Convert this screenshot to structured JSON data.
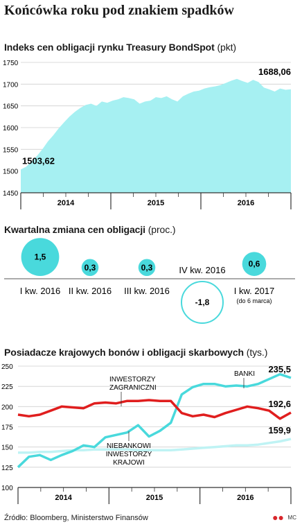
{
  "title": "Końcówka roku pod znakiem spadków",
  "source": "Źródło: Bloomberg, Ministerstwo Finansów",
  "brand": "MC",
  "colors": {
    "cyan": "#a6f0f2",
    "cyanLine": "#49d9dc",
    "red": "#e01e1e",
    "paleCyan": "#bff3f4",
    "grid": "#cfcfcf"
  },
  "chart_data": [
    {
      "type": "area",
      "title": "Indeks cen obligacji rynku Treasury BondSpot",
      "unit": "(pkt)",
      "ylim": [
        1450,
        1750
      ],
      "yticks": [
        "1750",
        "1700",
        "1650",
        "1600",
        "1550",
        "1500",
        "1450"
      ],
      "xlabels": [
        "2014",
        "2015",
        "2016"
      ],
      "x": [
        0,
        0.02,
        0.04,
        0.06,
        0.08,
        0.1,
        0.12,
        0.14,
        0.16,
        0.18,
        0.2,
        0.22,
        0.24,
        0.26,
        0.28,
        0.3,
        0.32,
        0.34,
        0.36,
        0.38,
        0.4,
        0.42,
        0.44,
        0.46,
        0.48,
        0.5,
        0.52,
        0.54,
        0.56,
        0.58,
        0.6,
        0.62,
        0.64,
        0.66,
        0.68,
        0.7,
        0.72,
        0.74,
        0.76,
        0.78,
        0.8,
        0.82,
        0.84,
        0.86,
        0.88,
        0.9,
        0.92,
        0.94,
        0.96,
        0.98,
        1
      ],
      "values": [
        1503.6,
        1510,
        1522,
        1535,
        1550,
        1568,
        1582,
        1598,
        1612,
        1625,
        1636,
        1645,
        1652,
        1655,
        1650,
        1660,
        1657,
        1662,
        1665,
        1670,
        1668,
        1665,
        1655,
        1660,
        1662,
        1670,
        1668,
        1672,
        1665,
        1660,
        1672,
        1678,
        1683,
        1685,
        1690,
        1693,
        1695,
        1698,
        1703,
        1708,
        1712,
        1707,
        1703,
        1710,
        1705,
        1692,
        1688,
        1683,
        1690,
        1687,
        1688.06
      ],
      "annotations": {
        "start": "1503,62",
        "end": "1688,06"
      }
    },
    {
      "type": "bubble",
      "title": "Kwartalna zmiana cen obligacji",
      "unit": "(proc.)",
      "categories": [
        "I kw. 2016",
        "II kw. 2016",
        "III kw. 2016",
        "IV kw. 2016",
        "I kw. 2017"
      ],
      "note": "(do 6 marca)",
      "values": [
        1.5,
        0.3,
        0.3,
        -1.8,
        0.6
      ],
      "labels": [
        "1,5",
        "0,3",
        "0,3",
        "-1,8",
        "0,6"
      ]
    },
    {
      "type": "line",
      "title": "Posiadacze krajowych bonów i obligacji skarbowych",
      "unit": "(tys.)",
      "ylim": [
        100,
        250
      ],
      "yticks": [
        "250",
        "225",
        "200",
        "175",
        "150",
        "125",
        "100"
      ],
      "xlabels": [
        "2014",
        "2015",
        "2016"
      ],
      "x": [
        0,
        0.04,
        0.08,
        0.12,
        0.16,
        0.2,
        0.24,
        0.28,
        0.32,
        0.36,
        0.4,
        0.44,
        0.48,
        0.52,
        0.56,
        0.6,
        0.64,
        0.68,
        0.72,
        0.76,
        0.8,
        0.84,
        0.88,
        0.92,
        0.96,
        1
      ],
      "series": [
        {
          "name": "BANKI",
          "color": "#49d9dc",
          "values": [
            125,
            138,
            140,
            134,
            140,
            145,
            152,
            150,
            162,
            165,
            168,
            177,
            163,
            170,
            180,
            215,
            224,
            228,
            228,
            225,
            226,
            225,
            228,
            234,
            240,
            235.5
          ],
          "end_label": "235,5"
        },
        {
          "name": "INWESTORZY ZAGRANICZNI",
          "color": "#e01e1e",
          "values": [
            190,
            188,
            190,
            195,
            200,
            199,
            198,
            204,
            205,
            204,
            207,
            207,
            208,
            207,
            207,
            192,
            188,
            190,
            187,
            192,
            196,
            200,
            198,
            195,
            185,
            192.6
          ],
          "end_label": "192,6"
        },
        {
          "name": "NIEBANKOWI INWESTORZY KRAJOWI",
          "color": "#bff3f4",
          "values": [
            143,
            143,
            144,
            144,
            145,
            146,
            146,
            147,
            147,
            147,
            147,
            146,
            146,
            146,
            146,
            147,
            148,
            149,
            150,
            151,
            152,
            152,
            153,
            155,
            157,
            159.9
          ],
          "end_label": "159,9"
        }
      ]
    }
  ]
}
